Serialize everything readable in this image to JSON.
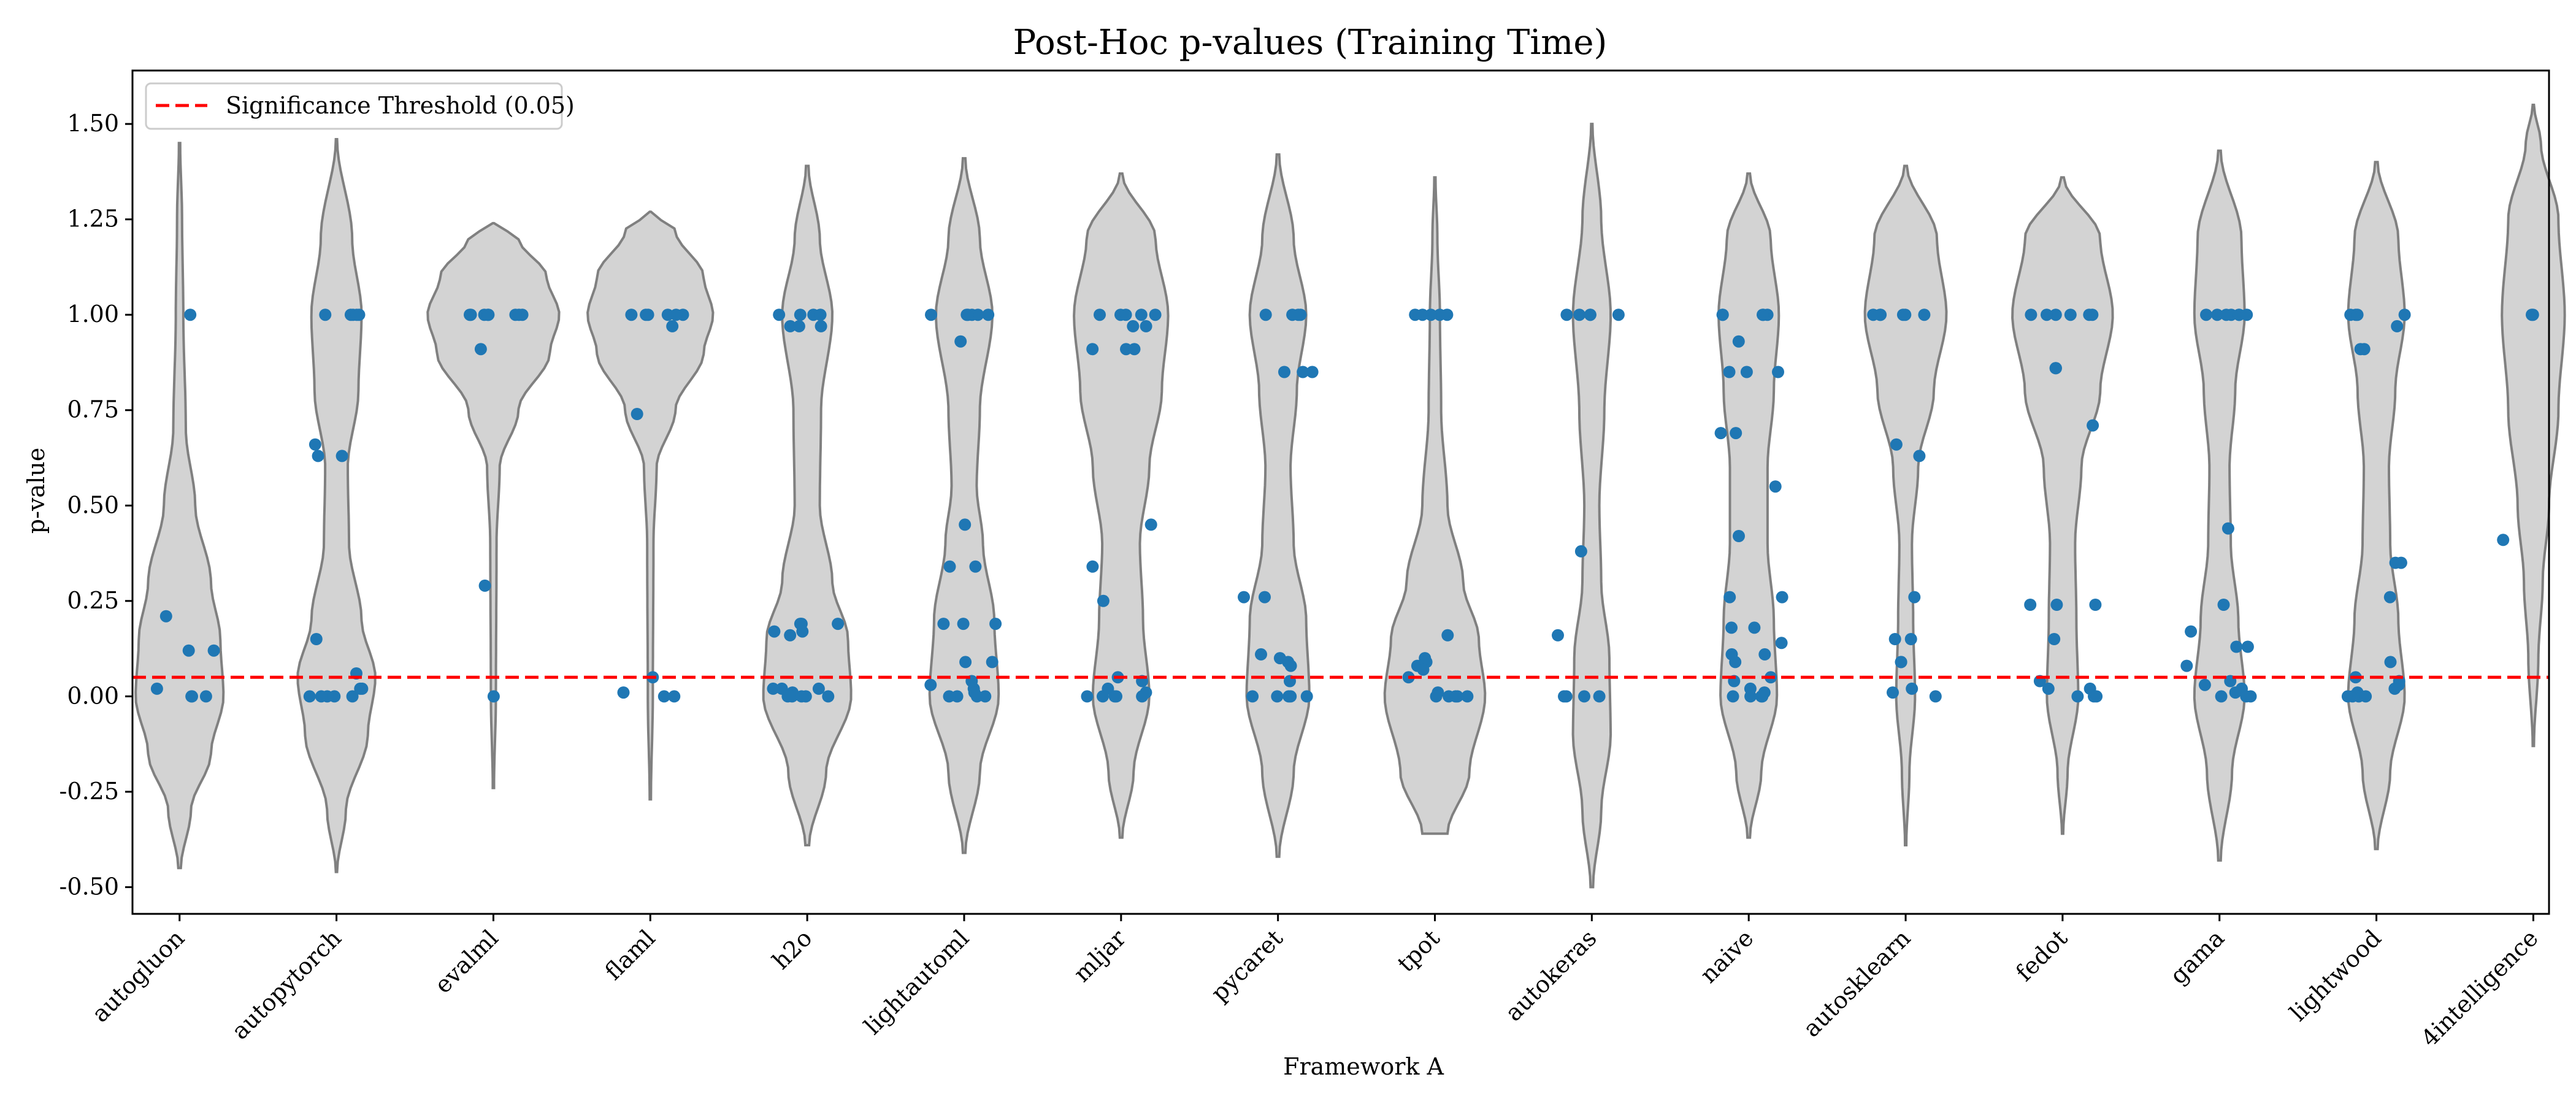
{
  "chart_data": {
    "type": "violin+strip",
    "title": "Post-Hoc p-values (Training Time)",
    "xlabel": "Framework A",
    "ylabel": "p-value",
    "ylim": [
      -0.57,
      1.64
    ],
    "yticks": [
      -0.5,
      -0.25,
      0.0,
      0.25,
      0.5,
      0.75,
      1.0,
      1.25,
      1.5
    ],
    "ytick_labels": [
      "-0.50",
      "-0.25",
      "0.00",
      "0.25",
      "0.50",
      "0.75",
      "1.00",
      "1.25",
      "1.50"
    ],
    "legend": {
      "location": "top-left",
      "label": "Significance Threshold (0.05)"
    },
    "threshold": 0.05,
    "colors": {
      "violin_fill": "#d3d3d3",
      "violin_edge": "#808080",
      "point": "#1f77b4",
      "threshold": "#ff0000"
    },
    "categories": [
      "autogluon",
      "autopytorch",
      "evalml",
      "flaml",
      "h2o",
      "lightautoml",
      "mljar",
      "pycaret",
      "tpot",
      "autokeras",
      "naive",
      "autosklearn",
      "fedot",
      "gama",
      "lightwood",
      "4intelligence"
    ],
    "violins": [
      {
        "min": -0.45,
        "max": 1.45,
        "profile": [
          [
            -0.45,
            0.002
          ],
          [
            -0.3,
            0.018
          ],
          [
            -0.15,
            0.05
          ],
          [
            0.0,
            0.07
          ],
          [
            0.15,
            0.065
          ],
          [
            0.3,
            0.05
          ],
          [
            0.5,
            0.025
          ],
          [
            0.7,
            0.01
          ],
          [
            1.0,
            0.006
          ],
          [
            1.25,
            0.004
          ],
          [
            1.45,
            0.001
          ]
        ]
      },
      {
        "min": -0.46,
        "max": 1.46,
        "profile": [
          [
            -0.46,
            0.001
          ],
          [
            -0.3,
            0.015
          ],
          [
            -0.1,
            0.05
          ],
          [
            0.05,
            0.062
          ],
          [
            0.2,
            0.04
          ],
          [
            0.4,
            0.02
          ],
          [
            0.6,
            0.018
          ],
          [
            0.8,
            0.035
          ],
          [
            1.0,
            0.04
          ],
          [
            1.2,
            0.025
          ],
          [
            1.46,
            0.001
          ]
        ]
      },
      {
        "min": -0.24,
        "max": 1.24,
        "profile": [
          [
            -0.24,
            0.001
          ],
          [
            0.0,
            0.004
          ],
          [
            0.4,
            0.005
          ],
          [
            0.6,
            0.01
          ],
          [
            0.75,
            0.04
          ],
          [
            0.9,
            0.09
          ],
          [
            1.0,
            0.105
          ],
          [
            1.1,
            0.085
          ],
          [
            1.2,
            0.04
          ],
          [
            1.24,
            0.001
          ]
        ]
      },
      {
        "min": -0.27,
        "max": 1.27,
        "profile": [
          [
            -0.27,
            0.001
          ],
          [
            0.0,
            0.004
          ],
          [
            0.4,
            0.005
          ],
          [
            0.6,
            0.01
          ],
          [
            0.75,
            0.04
          ],
          [
            0.9,
            0.085
          ],
          [
            1.0,
            0.1
          ],
          [
            1.1,
            0.085
          ],
          [
            1.22,
            0.04
          ],
          [
            1.27,
            0.001
          ]
        ]
      },
      {
        "min": -0.39,
        "max": 1.39,
        "profile": [
          [
            -0.39,
            0.003
          ],
          [
            -0.2,
            0.03
          ],
          [
            0.0,
            0.07
          ],
          [
            0.15,
            0.065
          ],
          [
            0.3,
            0.04
          ],
          [
            0.5,
            0.02
          ],
          [
            0.75,
            0.022
          ],
          [
            1.0,
            0.04
          ],
          [
            1.2,
            0.02
          ],
          [
            1.39,
            0.002
          ]
        ]
      },
      {
        "min": -0.41,
        "max": 1.41,
        "profile": [
          [
            -0.41,
            0.002
          ],
          [
            -0.2,
            0.025
          ],
          [
            0.0,
            0.055
          ],
          [
            0.2,
            0.048
          ],
          [
            0.4,
            0.03
          ],
          [
            0.55,
            0.02
          ],
          [
            0.75,
            0.025
          ],
          [
            1.0,
            0.045
          ],
          [
            1.2,
            0.025
          ],
          [
            1.41,
            0.002
          ]
        ]
      },
      {
        "min": -0.37,
        "max": 1.37,
        "profile": [
          [
            -0.37,
            0.002
          ],
          [
            -0.2,
            0.02
          ],
          [
            0.0,
            0.045
          ],
          [
            0.2,
            0.035
          ],
          [
            0.4,
            0.03
          ],
          [
            0.6,
            0.045
          ],
          [
            0.8,
            0.065
          ],
          [
            1.0,
            0.075
          ],
          [
            1.2,
            0.055
          ],
          [
            1.37,
            0.002
          ]
        ]
      },
      {
        "min": -0.42,
        "max": 1.42,
        "profile": [
          [
            -0.42,
            0.002
          ],
          [
            -0.2,
            0.025
          ],
          [
            0.0,
            0.05
          ],
          [
            0.2,
            0.045
          ],
          [
            0.4,
            0.025
          ],
          [
            0.6,
            0.02
          ],
          [
            0.8,
            0.03
          ],
          [
            1.0,
            0.045
          ],
          [
            1.2,
            0.025
          ],
          [
            1.42,
            0.002
          ]
        ]
      },
      {
        "min": -0.36,
        "max": 1.36,
        "profile": [
          [
            -0.36,
            0.02
          ],
          [
            -0.2,
            0.055
          ],
          [
            0.0,
            0.08
          ],
          [
            0.15,
            0.07
          ],
          [
            0.3,
            0.045
          ],
          [
            0.5,
            0.02
          ],
          [
            0.75,
            0.01
          ],
          [
            1.0,
            0.008
          ],
          [
            1.2,
            0.004
          ],
          [
            1.36,
            0.001
          ]
        ]
      },
      {
        "min": -0.5,
        "max": 1.5,
        "profile": [
          [
            -0.5,
            0.002
          ],
          [
            -0.3,
            0.015
          ],
          [
            -0.1,
            0.03
          ],
          [
            0.1,
            0.028
          ],
          [
            0.3,
            0.015
          ],
          [
            0.5,
            0.012
          ],
          [
            0.75,
            0.02
          ],
          [
            1.0,
            0.03
          ],
          [
            1.25,
            0.015
          ],
          [
            1.5,
            0.001
          ]
        ]
      },
      {
        "min": -0.37,
        "max": 1.37,
        "profile": [
          [
            -0.37,
            0.002
          ],
          [
            -0.2,
            0.02
          ],
          [
            0.0,
            0.045
          ],
          [
            0.2,
            0.04
          ],
          [
            0.4,
            0.03
          ],
          [
            0.6,
            0.03
          ],
          [
            0.8,
            0.04
          ],
          [
            1.0,
            0.048
          ],
          [
            1.2,
            0.035
          ],
          [
            1.37,
            0.002
          ]
        ]
      },
      {
        "min": -0.39,
        "max": 1.39,
        "profile": [
          [
            -0.39,
            0.001
          ],
          [
            -0.2,
            0.006
          ],
          [
            0.0,
            0.015
          ],
          [
            0.2,
            0.012
          ],
          [
            0.4,
            0.01
          ],
          [
            0.6,
            0.02
          ],
          [
            0.8,
            0.045
          ],
          [
            1.0,
            0.065
          ],
          [
            1.2,
            0.05
          ],
          [
            1.39,
            0.002
          ]
        ]
      },
      {
        "min": -0.36,
        "max": 1.36,
        "profile": [
          [
            -0.36,
            0.001
          ],
          [
            -0.2,
            0.008
          ],
          [
            0.0,
            0.025
          ],
          [
            0.2,
            0.022
          ],
          [
            0.4,
            0.02
          ],
          [
            0.6,
            0.03
          ],
          [
            0.8,
            0.06
          ],
          [
            1.0,
            0.08
          ],
          [
            1.2,
            0.06
          ],
          [
            1.36,
            0.002
          ]
        ]
      },
      {
        "min": -0.43,
        "max": 1.43,
        "profile": [
          [
            -0.43,
            0.002
          ],
          [
            -0.2,
            0.02
          ],
          [
            0.0,
            0.04
          ],
          [
            0.2,
            0.03
          ],
          [
            0.4,
            0.018
          ],
          [
            0.6,
            0.016
          ],
          [
            0.8,
            0.025
          ],
          [
            1.0,
            0.04
          ],
          [
            1.2,
            0.035
          ],
          [
            1.43,
            0.002
          ]
        ]
      },
      {
        "min": -0.4,
        "max": 1.4,
        "profile": [
          [
            -0.4,
            0.002
          ],
          [
            -0.2,
            0.022
          ],
          [
            0.0,
            0.045
          ],
          [
            0.2,
            0.035
          ],
          [
            0.4,
            0.022
          ],
          [
            0.6,
            0.02
          ],
          [
            0.8,
            0.03
          ],
          [
            1.0,
            0.045
          ],
          [
            1.2,
            0.035
          ],
          [
            1.4,
            0.002
          ]
        ]
      },
      {
        "min": -0.13,
        "max": 1.55,
        "profile": [
          [
            -0.13,
            0.001
          ],
          [
            0.1,
            0.008
          ],
          [
            0.3,
            0.015
          ],
          [
            0.5,
            0.025
          ],
          [
            0.75,
            0.04
          ],
          [
            1.0,
            0.05
          ],
          [
            1.25,
            0.04
          ],
          [
            1.45,
            0.012
          ],
          [
            1.55,
            0.001
          ]
        ]
      }
    ],
    "points": [
      [
        1.0,
        0.21,
        0.12,
        0.12,
        0.0,
        0.0,
        0.02,
        0.0
      ],
      [
        1.0,
        1.0,
        1.0,
        1.0,
        1.0,
        0.66,
        0.63,
        0.63,
        0.15,
        0.06,
        0.02,
        0.02,
        0.0,
        0.0,
        0.0,
        0.0,
        0.0
      ],
      [
        1.0,
        1.0,
        1.0,
        1.0,
        1.0,
        1.0,
        1.0,
        1.0,
        0.91,
        0.29,
        0.0
      ],
      [
        1.0,
        1.0,
        1.0,
        1.0,
        1.0,
        1.0,
        0.97,
        0.74,
        0.05,
        0.0,
        0.0,
        0.01
      ],
      [
        1.0,
        1.0,
        1.0,
        1.0,
        0.97,
        0.97,
        0.97,
        0.19,
        0.19,
        0.19,
        0.17,
        0.17,
        0.16,
        0.02,
        0.02,
        0.02,
        0.01,
        0.0,
        0.0,
        0.0,
        0.0,
        0.0
      ],
      [
        1.0,
        1.0,
        1.0,
        1.0,
        1.0,
        1.0,
        0.93,
        0.45,
        0.34,
        0.34,
        0.19,
        0.19,
        0.19,
        0.09,
        0.09,
        0.04,
        0.03,
        0.02,
        0.01,
        0.0,
        0.0,
        0.0,
        0.0
      ],
      [
        1.0,
        1.0,
        1.0,
        1.0,
        1.0,
        0.97,
        0.97,
        0.91,
        0.91,
        0.91,
        0.45,
        0.34,
        0.25,
        0.05,
        0.04,
        0.02,
        0.01,
        0.0,
        0.0,
        0.0,
        0.0,
        0.0
      ],
      [
        1.0,
        1.0,
        1.0,
        1.0,
        0.85,
        0.85,
        0.85,
        0.26,
        0.26,
        0.11,
        0.1,
        0.09,
        0.08,
        0.04,
        0.0,
        0.0,
        0.0,
        0.0,
        0.0
      ],
      [
        1.0,
        1.0,
        1.0,
        1.0,
        1.0,
        0.16,
        0.1,
        0.09,
        0.08,
        0.07,
        0.05,
        0.01,
        0.0,
        0.0,
        0.0,
        0.0,
        0.0
      ],
      [
        1.0,
        1.0,
        1.0,
        1.0,
        1.0,
        0.38,
        0.16,
        0.0,
        0.0,
        0.0,
        0.0
      ],
      [
        1.0,
        1.0,
        1.0,
        1.0,
        1.0,
        0.93,
        0.85,
        0.85,
        0.85,
        0.69,
        0.69,
        0.55,
        0.42,
        0.26,
        0.26,
        0.18,
        0.18,
        0.14,
        0.11,
        0.11,
        0.09,
        0.05,
        0.04,
        0.02,
        0.01,
        0.0,
        0.0,
        0.0,
        0.0
      ],
      [
        1.0,
        1.0,
        1.0,
        1.0,
        1.0,
        1.0,
        0.66,
        0.63,
        0.26,
        0.15,
        0.15,
        0.09,
        0.09,
        0.02,
        0.01,
        0.0
      ],
      [
        1.0,
        1.0,
        1.0,
        1.0,
        1.0,
        1.0,
        0.86,
        0.86,
        0.71,
        0.24,
        0.24,
        0.24,
        0.15,
        0.04,
        0.02,
        0.02,
        0.0,
        0.0,
        0.0
      ],
      [
        1.0,
        1.0,
        1.0,
        1.0,
        1.0,
        1.0,
        1.0,
        0.44,
        0.24,
        0.17,
        0.13,
        0.13,
        0.08,
        0.04,
        0.03,
        0.02,
        0.01,
        0.0,
        0.0,
        0.0
      ],
      [
        1.0,
        1.0,
        1.0,
        1.0,
        0.97,
        0.91,
        0.91,
        0.35,
        0.35,
        0.26,
        0.09,
        0.05,
        0.04,
        0.03,
        0.02,
        0.01,
        0.0,
        0.0,
        0.0,
        0.0
      ],
      [
        1.0,
        1.0,
        0.41
      ]
    ]
  }
}
